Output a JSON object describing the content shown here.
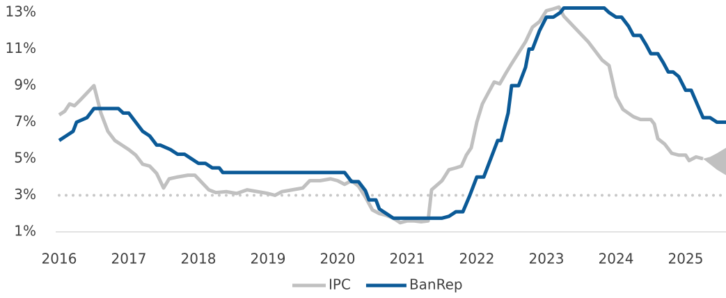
{
  "chart_data": {
    "type": "line",
    "ylim": [
      1,
      13
    ],
    "yticks": [
      {
        "value": 1,
        "label": "1%"
      },
      {
        "value": 3,
        "label": "3%"
      },
      {
        "value": 5,
        "label": "5%"
      },
      {
        "value": 7,
        "label": "7%"
      },
      {
        "value": 9,
        "label": "9%"
      },
      {
        "value": 11,
        "label": "11%"
      },
      {
        "value": 13,
        "label": "13%"
      }
    ],
    "xlim": [
      2016,
      2025.58
    ],
    "xticks": [
      2016,
      2017,
      2018,
      2019,
      2020,
      2021,
      2022,
      2023,
      2024,
      2025
    ],
    "target_line": 3,
    "legend": "bottom",
    "series": [
      {
        "name": "IPC",
        "color": "#c0c0c0",
        "x": [
          2016.0,
          2016.08,
          2016.15,
          2016.22,
          2016.3,
          2016.4,
          2016.5,
          2016.6,
          2016.7,
          2016.8,
          2016.9,
          2017.0,
          2017.1,
          2017.2,
          2017.3,
          2017.4,
          2017.5,
          2017.58,
          2017.7,
          2017.85,
          2017.95,
          2018.05,
          2018.15,
          2018.25,
          2018.4,
          2018.55,
          2018.7,
          2018.85,
          2019.0,
          2019.1,
          2019.2,
          2019.35,
          2019.5,
          2019.6,
          2019.75,
          2019.9,
          2020.0,
          2020.1,
          2020.2,
          2020.3,
          2020.4,
          2020.5,
          2020.6,
          2020.7,
          2020.8,
          2020.9,
          2021.0,
          2021.1,
          2021.2,
          2021.3,
          2021.35,
          2021.5,
          2021.6,
          2021.7,
          2021.78,
          2021.85,
          2021.92,
          2022.0,
          2022.08,
          2022.15,
          2022.25,
          2022.33,
          2022.42,
          2022.5,
          2022.6,
          2022.7,
          2022.8,
          2022.9,
          2023.0,
          2023.1,
          2023.18,
          2023.25,
          2023.35,
          2023.5,
          2023.6,
          2023.7,
          2023.8,
          2023.9,
          2024.0,
          2024.1,
          2024.25,
          2024.35,
          2024.5,
          2024.55,
          2024.6,
          2024.7,
          2024.8,
          2024.9,
          2025.0,
          2025.05,
          2025.15,
          2025.25
        ],
        "values": [
          7.4,
          7.6,
          8.0,
          7.9,
          8.2,
          8.6,
          9.0,
          7.5,
          6.5,
          6.0,
          5.75,
          5.5,
          5.2,
          4.7,
          4.6,
          4.2,
          3.4,
          3.9,
          4.0,
          4.1,
          4.1,
          3.7,
          3.3,
          3.15,
          3.2,
          3.1,
          3.3,
          3.2,
          3.1,
          3.0,
          3.2,
          3.3,
          3.4,
          3.8,
          3.8,
          3.9,
          3.8,
          3.6,
          3.8,
          3.5,
          2.9,
          2.2,
          2.0,
          1.9,
          1.75,
          1.5,
          1.6,
          1.6,
          1.55,
          1.6,
          3.3,
          3.8,
          4.4,
          4.5,
          4.6,
          5.2,
          5.6,
          7.0,
          8.0,
          8.5,
          9.2,
          9.1,
          9.7,
          10.2,
          10.8,
          11.4,
          12.2,
          12.5,
          13.1,
          13.2,
          13.3,
          12.8,
          12.4,
          11.8,
          11.4,
          10.9,
          10.4,
          10.1,
          8.4,
          7.7,
          7.3,
          7.15,
          7.15,
          6.9,
          6.1,
          5.8,
          5.3,
          5.2,
          5.2,
          4.9,
          5.1,
          5.0
        ]
      },
      {
        "name": "BanRep",
        "color": "#0b5a97",
        "x": [
          2016.0,
          2016.1,
          2016.2,
          2016.25,
          2016.4,
          2016.45,
          2016.5,
          2016.85,
          2016.92,
          2017.0,
          2017.1,
          2017.2,
          2017.3,
          2017.4,
          2017.45,
          2017.6,
          2017.7,
          2017.8,
          2017.9,
          2018.0,
          2018.1,
          2018.2,
          2018.3,
          2018.35,
          2020.1,
          2020.2,
          2020.3,
          2020.4,
          2020.45,
          2020.55,
          2020.6,
          2020.7,
          2020.8,
          2021.5,
          2021.6,
          2021.7,
          2021.8,
          2021.9,
          2022.0,
          2022.1,
          2022.2,
          2022.3,
          2022.35,
          2022.45,
          2022.5,
          2022.6,
          2022.7,
          2022.75,
          2022.8,
          2022.9,
          2023.0,
          2023.1,
          2023.2,
          2023.25,
          2023.83,
          2023.9,
          2024.0,
          2024.08,
          2024.18,
          2024.25,
          2024.35,
          2024.43,
          2024.5,
          2024.6,
          2024.68,
          2024.75,
          2024.82,
          2024.9,
          2025.0,
          2025.08,
          2025.25,
          2025.35,
          2025.45,
          2025.58
        ],
        "values": [
          6.0,
          6.25,
          6.5,
          7.0,
          7.25,
          7.5,
          7.75,
          7.75,
          7.5,
          7.5,
          7.0,
          6.5,
          6.25,
          5.75,
          5.75,
          5.5,
          5.25,
          5.25,
          5.0,
          4.75,
          4.75,
          4.5,
          4.5,
          4.25,
          4.25,
          3.75,
          3.75,
          3.25,
          2.75,
          2.75,
          2.25,
          2.0,
          1.75,
          1.75,
          1.85,
          2.1,
          2.1,
          3.0,
          4.0,
          4.0,
          5.0,
          6.0,
          6.0,
          7.5,
          9.0,
          9.0,
          10.0,
          11.0,
          11.0,
          12.0,
          12.75,
          12.75,
          13.0,
          13.25,
          13.25,
          13.0,
          12.75,
          12.75,
          12.25,
          11.75,
          11.75,
          11.25,
          10.75,
          10.75,
          10.25,
          9.75,
          9.75,
          9.5,
          8.75,
          8.75,
          7.25,
          7.25,
          7.0,
          7.0
        ]
      }
    ],
    "projection": {
      "color": "#c0c0c0",
      "x": [
        2025.25,
        2025.35,
        2025.45,
        2025.58
      ],
      "upper": [
        5.0,
        5.1,
        5.3,
        5.6
      ],
      "lower": [
        5.0,
        4.7,
        4.4,
        4.1
      ]
    }
  }
}
